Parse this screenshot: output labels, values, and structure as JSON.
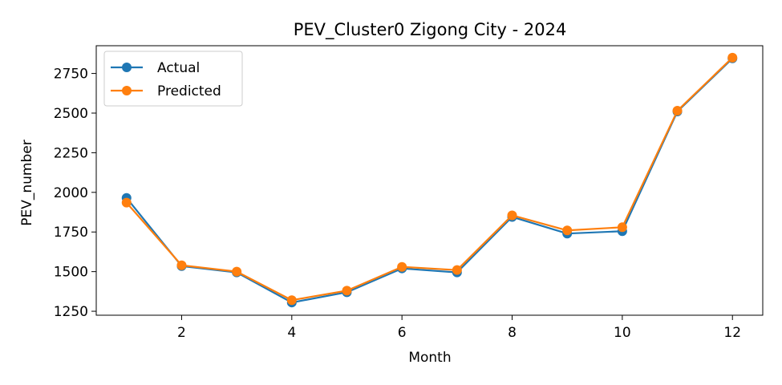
{
  "chart_data": {
    "type": "line",
    "title": "PEV_Cluster0 Zigong City - 2024",
    "xlabel": "Month",
    "ylabel": "PEV_number",
    "x": [
      1,
      2,
      3,
      4,
      5,
      6,
      7,
      8,
      9,
      10,
      11,
      12
    ],
    "xlim": [
      0.45,
      12.55
    ],
    "ylim": [
      1225,
      2925
    ],
    "xticks": [
      2,
      4,
      6,
      8,
      10,
      12
    ],
    "yticks": [
      1250,
      1500,
      1750,
      2000,
      2250,
      2500,
      2750
    ],
    "grid": false,
    "legend_position": "upper-left",
    "series": [
      {
        "name": "Actual",
        "color": "#1f77b4",
        "values": [
          1965,
          1535,
          1495,
          1305,
          1370,
          1520,
          1495,
          1845,
          1740,
          1755,
          2510,
          2845
        ]
      },
      {
        "name": "Predicted",
        "color": "#ff7f0e",
        "values": [
          1935,
          1540,
          1500,
          1320,
          1380,
          1530,
          1510,
          1855,
          1760,
          1780,
          2515,
          2850
        ]
      }
    ]
  }
}
